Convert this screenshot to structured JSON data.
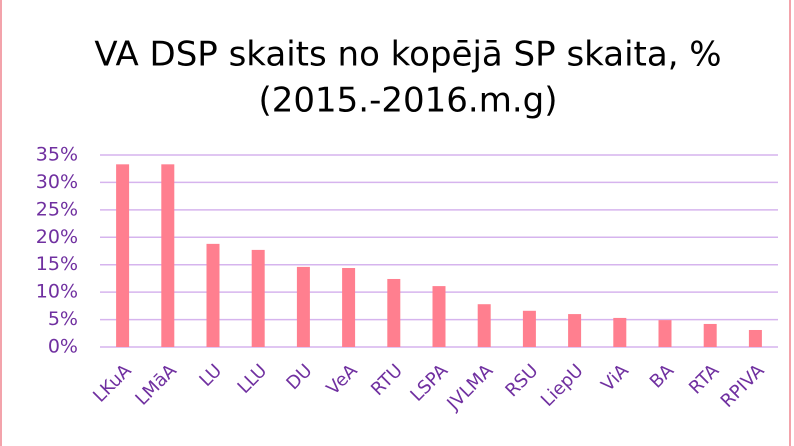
{
  "chart_data": {
    "type": "bar",
    "title": "VA DSP skaits no kopējā SP skaita, %",
    "subtitle": "(2015.-2016.m.g)",
    "categories": [
      "LKuA",
      "LMāA",
      "LU",
      "LLU",
      "DU",
      "VeA",
      "RTU",
      "LSPA",
      "JVLMA",
      "RSU",
      "LiepU",
      "ViA",
      "BA",
      "RTA",
      "RPIVA"
    ],
    "values": [
      33.3,
      33.3,
      18.8,
      17.7,
      14.6,
      14.4,
      12.4,
      11.1,
      7.8,
      6.6,
      6.0,
      5.3,
      4.9,
      4.2,
      3.1
    ],
    "color": "#ff7f8f",
    "ylim": [
      0,
      35
    ],
    "yticks": [
      {
        "value": 0,
        "label": "0%"
      },
      {
        "value": 5,
        "label": "5%"
      },
      {
        "value": 10,
        "label": "10%"
      },
      {
        "value": 15,
        "label": "15%"
      },
      {
        "value": 20,
        "label": "20%"
      },
      {
        "value": 25,
        "label": "25%"
      },
      {
        "value": 30,
        "label": "30%"
      },
      {
        "value": 35,
        "label": "35%"
      }
    ],
    "grid": true
  }
}
